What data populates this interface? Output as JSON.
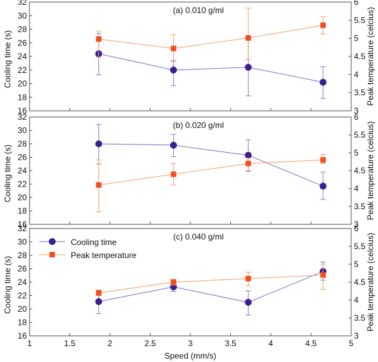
{
  "colors": {
    "cooling_time": "#3a1f8f",
    "peak_temperature": "#f0501e",
    "cooling_line": "#7777cc",
    "peak_line": "#f7a06a",
    "errorbar_cooling": "#8080c8",
    "errorbar_peak": "#f5a070"
  },
  "chart_data": [
    {
      "type": "line",
      "title": "(a) 0.010 g/ml",
      "xlabel": "",
      "ylabel": "Cooling time (s)",
      "y2label": "Peak temperature (celcius)",
      "xlim": [
        1,
        5
      ],
      "ylim": [
        16,
        32
      ],
      "y2lim": [
        3,
        6
      ],
      "yticks": [
        "16",
        "18",
        "20",
        "22",
        "24",
        "26",
        "28",
        "30",
        "32"
      ],
      "y2ticks": [
        "3",
        "3.5",
        "4",
        "4.5",
        "5",
        "5.5",
        "6"
      ],
      "series": [
        {
          "name": "Cooling time",
          "axis": "left",
          "marker": "circle",
          "x": [
            1.86,
            2.79,
            3.72,
            4.65
          ],
          "y": [
            24.4,
            22.0,
            22.4,
            20.2
          ],
          "err_low": [
            21.3,
            19.7,
            18.2,
            17.8
          ],
          "err_high": [
            27.4,
            23.4,
            26.6,
            22.5
          ]
        },
        {
          "name": "Peak temperature",
          "axis": "right",
          "marker": "square",
          "x": [
            1.86,
            2.79,
            3.72,
            4.65
          ],
          "y": [
            4.98,
            4.72,
            5.01,
            5.36
          ],
          "err_low": [
            4.48,
            4.35,
            4.42,
            5.12
          ],
          "err_high": [
            5.2,
            5.1,
            5.83,
            5.6
          ]
        }
      ]
    },
    {
      "type": "line",
      "title": "(b) 0.020 g/ml",
      "xlabel": "",
      "ylabel": "Cooling time (s)",
      "y2label": "Peak temperature (celcius)",
      "xlim": [
        1,
        5
      ],
      "ylim": [
        16,
        32
      ],
      "y2lim": [
        3,
        6
      ],
      "yticks": [
        "16",
        "18",
        "20",
        "22",
        "24",
        "26",
        "28",
        "30",
        "32"
      ],
      "y2ticks": [
        "3",
        "3.5",
        "4",
        "4.5",
        "5",
        "5.5",
        "6"
      ],
      "series": [
        {
          "name": "Cooling time",
          "axis": "left",
          "marker": "circle",
          "x": [
            1.86,
            2.79,
            3.72,
            4.65
          ],
          "y": [
            28.0,
            27.8,
            26.3,
            21.7
          ],
          "err_low": [
            25.0,
            26.1,
            24.0,
            19.7
          ],
          "err_high": [
            30.9,
            29.4,
            28.6,
            23.8
          ]
        },
        {
          "name": "Peak temperature",
          "axis": "right",
          "marker": "square",
          "x": [
            1.86,
            2.79,
            3.72,
            4.65
          ],
          "y": [
            4.1,
            4.4,
            4.7,
            4.8
          ],
          "err_low": [
            3.35,
            4.1,
            4.47,
            4.7
          ],
          "err_high": [
            4.8,
            4.7,
            4.85,
            4.95
          ]
        }
      ]
    },
    {
      "type": "line",
      "title": "(c) 0.040 g/ml",
      "xlabel": "Speed (mm/s)",
      "ylabel": "Cooling time (s)",
      "y2label": "Peak temperature (celcius)",
      "xlim": [
        1,
        5
      ],
      "ylim": [
        16,
        32
      ],
      "y2lim": [
        3,
        6
      ],
      "xticks": [
        "1",
        "1.5",
        "2",
        "2.5",
        "3",
        "3.5",
        "4",
        "4.5",
        "5"
      ],
      "yticks": [
        "16",
        "18",
        "20",
        "22",
        "24",
        "26",
        "28",
        "30",
        "32"
      ],
      "y2ticks": [
        "3",
        "3.5",
        "4",
        "4.5",
        "5",
        "5.5",
        "6"
      ],
      "legend": {
        "position": "top-left",
        "items": [
          "Cooling time",
          "Peak temperature"
        ]
      },
      "series": [
        {
          "name": "Cooling time",
          "axis": "left",
          "marker": "circle",
          "x": [
            1.86,
            2.79,
            3.72,
            4.65
          ],
          "y": [
            21.1,
            23.3,
            21.0,
            25.6
          ],
          "err_low": [
            19.3,
            22.6,
            19.1,
            24.3
          ],
          "err_high": [
            22.6,
            24.0,
            22.7,
            27.0
          ]
        },
        {
          "name": "Peak temperature",
          "axis": "right",
          "marker": "square",
          "x": [
            1.86,
            2.79,
            3.72,
            4.65
          ],
          "y": [
            4.2,
            4.5,
            4.6,
            4.7
          ],
          "err_low": [
            4.12,
            4.42,
            4.4,
            4.3
          ],
          "err_high": [
            4.28,
            4.58,
            4.78,
            5.0
          ]
        }
      ]
    }
  ]
}
